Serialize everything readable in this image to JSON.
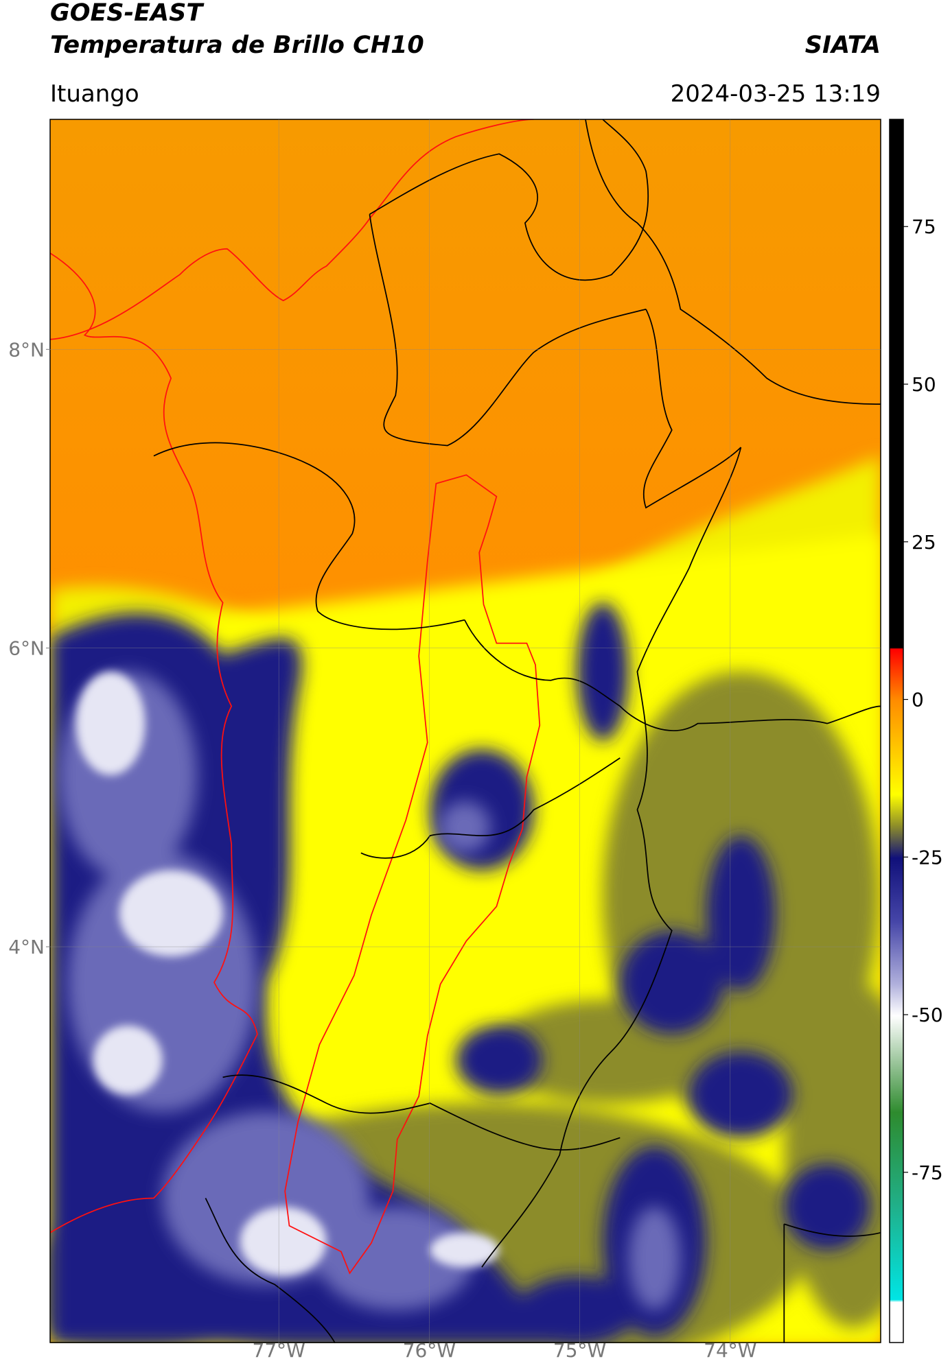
{
  "header": {
    "title": "GOES-EAST",
    "subtitle": "Temperatura de Brillo CH10",
    "org": "SIATA",
    "location": "Ituango",
    "datetime": "2024-03-25 13:19"
  },
  "chart_data": {
    "type": "map",
    "xlim": [
      -78.52,
      -73.0
    ],
    "ylim": [
      1.35,
      9.54
    ],
    "xticks": [
      {
        "value": -77,
        "label": "77°W"
      },
      {
        "value": -76,
        "label": "76°W"
      },
      {
        "value": -75,
        "label": "75°W"
      },
      {
        "value": -74,
        "label": "74°W"
      }
    ],
    "yticks": [
      {
        "value": 4,
        "label": "4°N"
      },
      {
        "value": 6,
        "label": "6°N"
      },
      {
        "value": 8,
        "label": "8°N"
      }
    ],
    "grid": true,
    "colorbar": {
      "ylim": [
        -102,
        92
      ],
      "yticks": [
        -75,
        -50,
        -25,
        0,
        25,
        50,
        75
      ]
    }
  }
}
